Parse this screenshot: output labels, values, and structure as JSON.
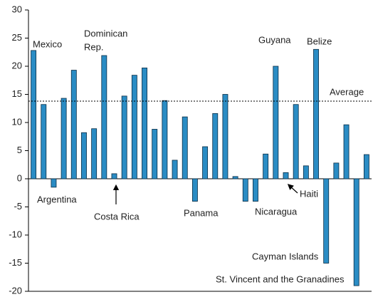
{
  "chart_data": {
    "type": "bar",
    "categories": [
      null,
      null,
      null,
      null,
      null,
      null,
      null,
      null,
      null,
      null,
      null,
      null,
      null,
      null,
      null,
      null,
      null,
      null,
      null,
      null,
      null,
      null,
      null,
      null,
      null,
      null,
      null,
      null,
      null,
      null,
      null,
      null,
      null,
      null
    ],
    "values": [
      22.8,
      13.2,
      -1.5,
      14.3,
      19.3,
      8.2,
      8.9,
      21.9,
      0.9,
      14.7,
      18.4,
      19.7,
      8.8,
      13.9,
      3.3,
      11.0,
      -4.0,
      5.7,
      11.6,
      15.0,
      0.4,
      -4.0,
      -4.0,
      4.4,
      20.0,
      1.1,
      13.2,
      2.3,
      23.0,
      -15.0,
      2.8,
      9.6,
      -19.0,
      4.3
    ],
    "color": "#2a8cc4",
    "ylim": [
      -20,
      30
    ],
    "yticks": [
      -20,
      -15,
      -10,
      -5,
      0,
      5,
      10,
      15,
      20,
      25,
      30
    ],
    "average": {
      "label": "Average",
      "value": 13.8
    },
    "annotations": [
      [
        "Mexico"
      ],
      [
        "Argentina"
      ],
      [
        "Dominican",
        "Rep."
      ],
      [
        "Costa Rica"
      ],
      [
        "Panama"
      ],
      [
        "Nicaragua"
      ],
      [
        "Guyana"
      ],
      [
        "Haiti"
      ],
      [
        "Belize"
      ],
      [
        "Cayman Islands"
      ],
      [
        "St. Vincent and the Granadines"
      ]
    ]
  }
}
